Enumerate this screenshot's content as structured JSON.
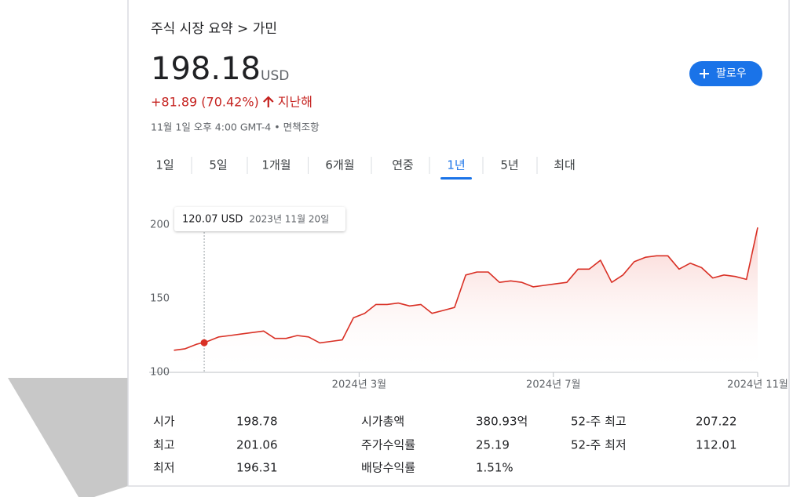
{
  "breadcrumb": "주식 시장 요약 > 가민",
  "price": "198.18",
  "currency": "USD",
  "change": "+81.89 (70.42%)",
  "change_period": "지난해",
  "timestamp": "11월 1일 오후 4:00 GMT-4 • 면책조항",
  "follow_button": "팔로우",
  "tabs": [
    "1일",
    "5일",
    "1개월",
    "6개월",
    "연중",
    "1년",
    "5년",
    "최대"
  ],
  "selected_tab": 5,
  "chart_data": {
    "type": "line",
    "color": "#d93025",
    "values": [
      115,
      116,
      119,
      121,
      124,
      125,
      126,
      127,
      128,
      123,
      123,
      125,
      124,
      120,
      121,
      122,
      137,
      140,
      146,
      146,
      147,
      145,
      146,
      140,
      142,
      144,
      166,
      168,
      168,
      161,
      162,
      161,
      158,
      159,
      160,
      161,
      170,
      170,
      176,
      161,
      166,
      175,
      178,
      179,
      179,
      170,
      174,
      171,
      164,
      166,
      165,
      163,
      198.18
    ],
    "xlim": [
      -2.2,
      52
    ],
    "xticks": [
      {
        "value": 16.5,
        "label": "2024년 3월"
      },
      {
        "value": 33.8,
        "label": "2024년 7월"
      },
      {
        "value": 52,
        "label": "2024년 11월"
      }
    ],
    "ylim": [
      100,
      210
    ],
    "yticks": [
      100,
      150,
      200
    ],
    "grid": false,
    "tooltip": {
      "x": 2.7,
      "value": 120.07,
      "label": "120.07 USD",
      "date": "2023년 11월 20일"
    }
  },
  "stats": [
    [
      {
        "label": "시가",
        "value": "198.78"
      },
      {
        "label": "시가총액",
        "value": "380.93억"
      },
      {
        "label": "52-주 최고",
        "value": "207.22"
      }
    ],
    [
      {
        "label": "최고",
        "value": "201.06"
      },
      {
        "label": "주가수익률",
        "value": "25.19"
      },
      {
        "label": "52-주 최저",
        "value": "112.01"
      }
    ],
    [
      {
        "label": "최저",
        "value": "196.31"
      },
      {
        "label": "배당수익률",
        "value": "1.51%"
      }
    ]
  ]
}
